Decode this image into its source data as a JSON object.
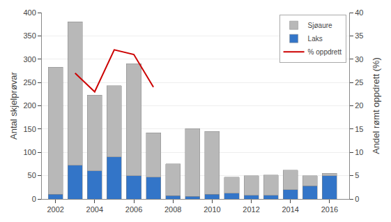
{
  "chart_data": {
    "type": "bar",
    "stacked": true,
    "x": [
      2002,
      2003,
      2004,
      2005,
      2006,
      2007,
      2008,
      2009,
      2010,
      2011,
      2012,
      2013,
      2014,
      2015,
      2016
    ],
    "series": [
      {
        "name": "Laks",
        "color": "#3375c8",
        "values": [
          10,
          72,
          60,
          90,
          50,
          47,
          7,
          6,
          10,
          12,
          8,
          8,
          20,
          28,
          50
        ]
      },
      {
        "name": "Sjøaure",
        "color": "#b8b8b8",
        "values": [
          273,
          308,
          163,
          153,
          240,
          95,
          68,
          145,
          135,
          35,
          42,
          43,
          42,
          22,
          5
        ]
      },
      {
        "name": "% oppdrett",
        "type": "line",
        "axis": "y2",
        "color": "#cc0000",
        "x": [
          2003,
          2004,
          2005,
          2006,
          2007
        ],
        "values": [
          27,
          23,
          32,
          31,
          24
        ]
      }
    ],
    "xlim": [
      2001.3,
      2017.0
    ],
    "xticks": [
      2002,
      2004,
      2006,
      2008,
      2010,
      2012,
      2014,
      2016
    ],
    "ylim": [
      0,
      400
    ],
    "yticks": [
      0,
      50,
      100,
      150,
      200,
      250,
      300,
      350,
      400
    ],
    "y2lim": [
      0,
      40
    ],
    "y2ticks": [
      0,
      5,
      10,
      15,
      20,
      25,
      30,
      35,
      40
    ],
    "ylabel": "Antal skjelprøvar",
    "y2label": "Andel rømt oppdrett (%)",
    "grid": true,
    "legend": "upper right"
  }
}
